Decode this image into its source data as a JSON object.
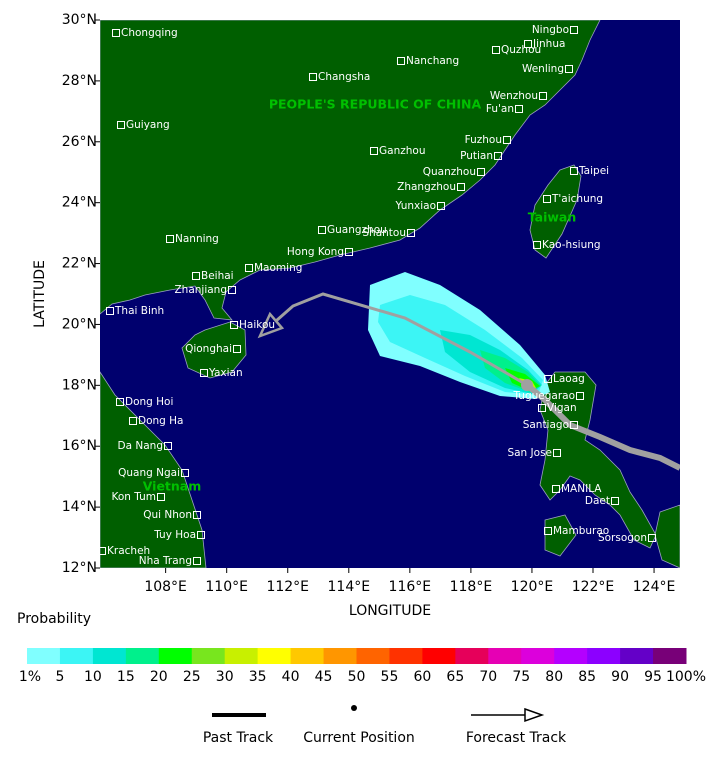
{
  "map": {
    "xlim": [
      105.85,
      124.85
    ],
    "ylim": [
      12,
      30
    ],
    "x_axis": {
      "title": "LONGITUDE",
      "ticks": [
        {
          "value": 108,
          "label": "108°E"
        },
        {
          "value": 110,
          "label": "110°E"
        },
        {
          "value": 112,
          "label": "112°E"
        },
        {
          "value": 114,
          "label": "114°E"
        },
        {
          "value": 116,
          "label": "116°E"
        },
        {
          "value": 118,
          "label": "118°E"
        },
        {
          "value": 120,
          "label": "120°E"
        },
        {
          "value": 122,
          "label": "122°E"
        },
        {
          "value": 124,
          "label": "124°E"
        }
      ]
    },
    "y_axis": {
      "title": "LATITUDE",
      "ticks": [
        {
          "value": 12,
          "label": "12°N"
        },
        {
          "value": 14,
          "label": "14°N"
        },
        {
          "value": 16,
          "label": "16°N"
        },
        {
          "value": 18,
          "label": "18°N"
        },
        {
          "value": 20,
          "label": "20°N"
        },
        {
          "value": 22,
          "label": "22°N"
        },
        {
          "value": 24,
          "label": "24°N"
        },
        {
          "value": 26,
          "label": "26°N"
        },
        {
          "value": 28,
          "label": "28°N"
        },
        {
          "value": 30,
          "label": "30°N"
        }
      ]
    },
    "countries": [
      "PEOPLE'S REPUBLIC OF CHINA",
      "Taiwan",
      "Vietnam"
    ],
    "cities": [
      "Chongqing",
      "Ningbo",
      "Jinhua",
      "Quzhou",
      "Wenling",
      "Changsha",
      "Nanchang",
      "Wenzhou",
      "Fu'an",
      "Guiyang",
      "Fuzhou",
      "Ganzhou",
      "Putian",
      "Quanzhou",
      "Taipei",
      "Zhangzhou",
      "T'aichung",
      "Yunxiao",
      "Guangzhou",
      "Shantou",
      "Nanning",
      "Kao-hsiung",
      "Hong Kong",
      "Maoming",
      "Beihai",
      "Zhanjiang",
      "Thai Binh",
      "Haikou",
      "Qionghai",
      "Yaxian",
      "Laoag",
      "Tuguegarao",
      "Vigan",
      "Dong Hoi",
      "Dong Ha",
      "Santiago",
      "Da Nang",
      "San Jose",
      "Quang Ngai",
      "Kon Tum",
      "MANILA",
      "Daet",
      "Qui Nhon",
      "Mamburao",
      "Tuy Hoa",
      "Sorsogon",
      "Kracheh",
      "Nha Trang"
    ]
  },
  "legend": {
    "title": "Probability",
    "labels": [
      "1%",
      "5",
      "10",
      "15",
      "20",
      "25",
      "30",
      "35",
      "40",
      "45",
      "50",
      "55",
      "60",
      "65",
      "70",
      "75",
      "80",
      "85",
      "90",
      "95",
      "100%"
    ],
    "colors": [
      "#80ffff",
      "#3cf5f5",
      "#00e6d2",
      "#00f08c",
      "#00ff00",
      "#78e61e",
      "#c8f000",
      "#ffff00",
      "#ffc800",
      "#ff9600",
      "#ff6400",
      "#ff3200",
      "#ff0000",
      "#e6005a",
      "#e600b4",
      "#dc00dc",
      "#b400ff",
      "#8c00ff",
      "#6400c8",
      "#780078"
    ],
    "items": [
      "Past Track",
      "Current Position",
      "Forecast Track"
    ]
  }
}
